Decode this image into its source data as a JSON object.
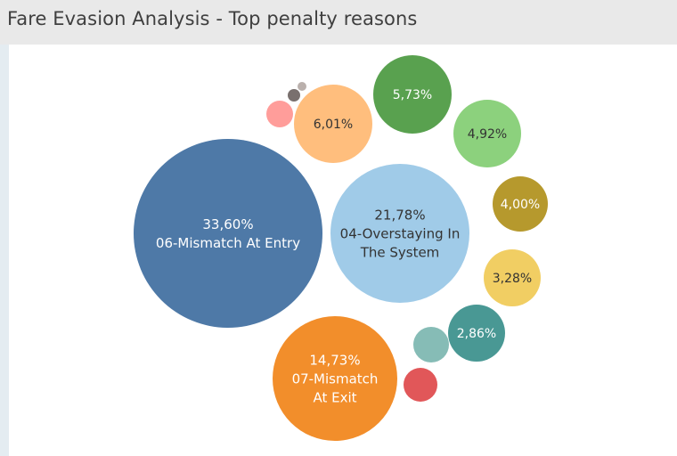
{
  "title": "Fare Evasion Analysis - Top penalty reasons",
  "chart_data": {
    "type": "bubble",
    "title": "Fare Evasion Analysis - Top penalty reasons",
    "bubbles": [
      {
        "value_label": "33,60%",
        "category": "06-Mismatch At Entry",
        "value": 33.6,
        "color": "#4e79a7",
        "text_color": "#ffffff"
      },
      {
        "value_label": "21,78%",
        "category": "04-Overstaying In The System",
        "value": 21.78,
        "color": "#a0cbe8",
        "text_color": "#333333"
      },
      {
        "value_label": "14,73%",
        "category": "07-Mismatch At Exit",
        "value": 14.73,
        "color": "#f28e2b",
        "text_color": "#ffffff"
      },
      {
        "value_label": "6,01%",
        "category": "",
        "value": 6.01,
        "color": "#ffbe7d",
        "text_color": "#333333"
      },
      {
        "value_label": "5,73%",
        "category": "",
        "value": 5.73,
        "color": "#59a14f",
        "text_color": "#ffffff"
      },
      {
        "value_label": "4,92%",
        "category": "",
        "value": 4.92,
        "color": "#8cd17d",
        "text_color": "#333333"
      },
      {
        "value_label": "4,00%",
        "category": "",
        "value": 4.0,
        "color": "#b6992d",
        "text_color": "#ffffff"
      },
      {
        "value_label": "3,28%",
        "category": "",
        "value": 3.28,
        "color": "#f1ce63",
        "text_color": "#333333"
      },
      {
        "value_label": "2,86%",
        "category": "",
        "value": 2.86,
        "color": "#499894",
        "text_color": "#ffffff"
      },
      {
        "value_label": "",
        "category": "",
        "value": 1.3,
        "color": "#86bcb6",
        "text_color": "#333333"
      },
      {
        "value_label": "",
        "category": "",
        "value": 1.2,
        "color": "#e15759",
        "text_color": "#ffffff"
      },
      {
        "value_label": "",
        "category": "",
        "value": 1.0,
        "color": "#ff9d9a",
        "text_color": "#333333"
      },
      {
        "value_label": "",
        "category": "",
        "value": 0.2,
        "color": "#79706e",
        "text_color": "#ffffff"
      },
      {
        "value_label": "",
        "category": "",
        "value": 0.1,
        "color": "#bab0ac",
        "text_color": "#333333"
      }
    ]
  }
}
